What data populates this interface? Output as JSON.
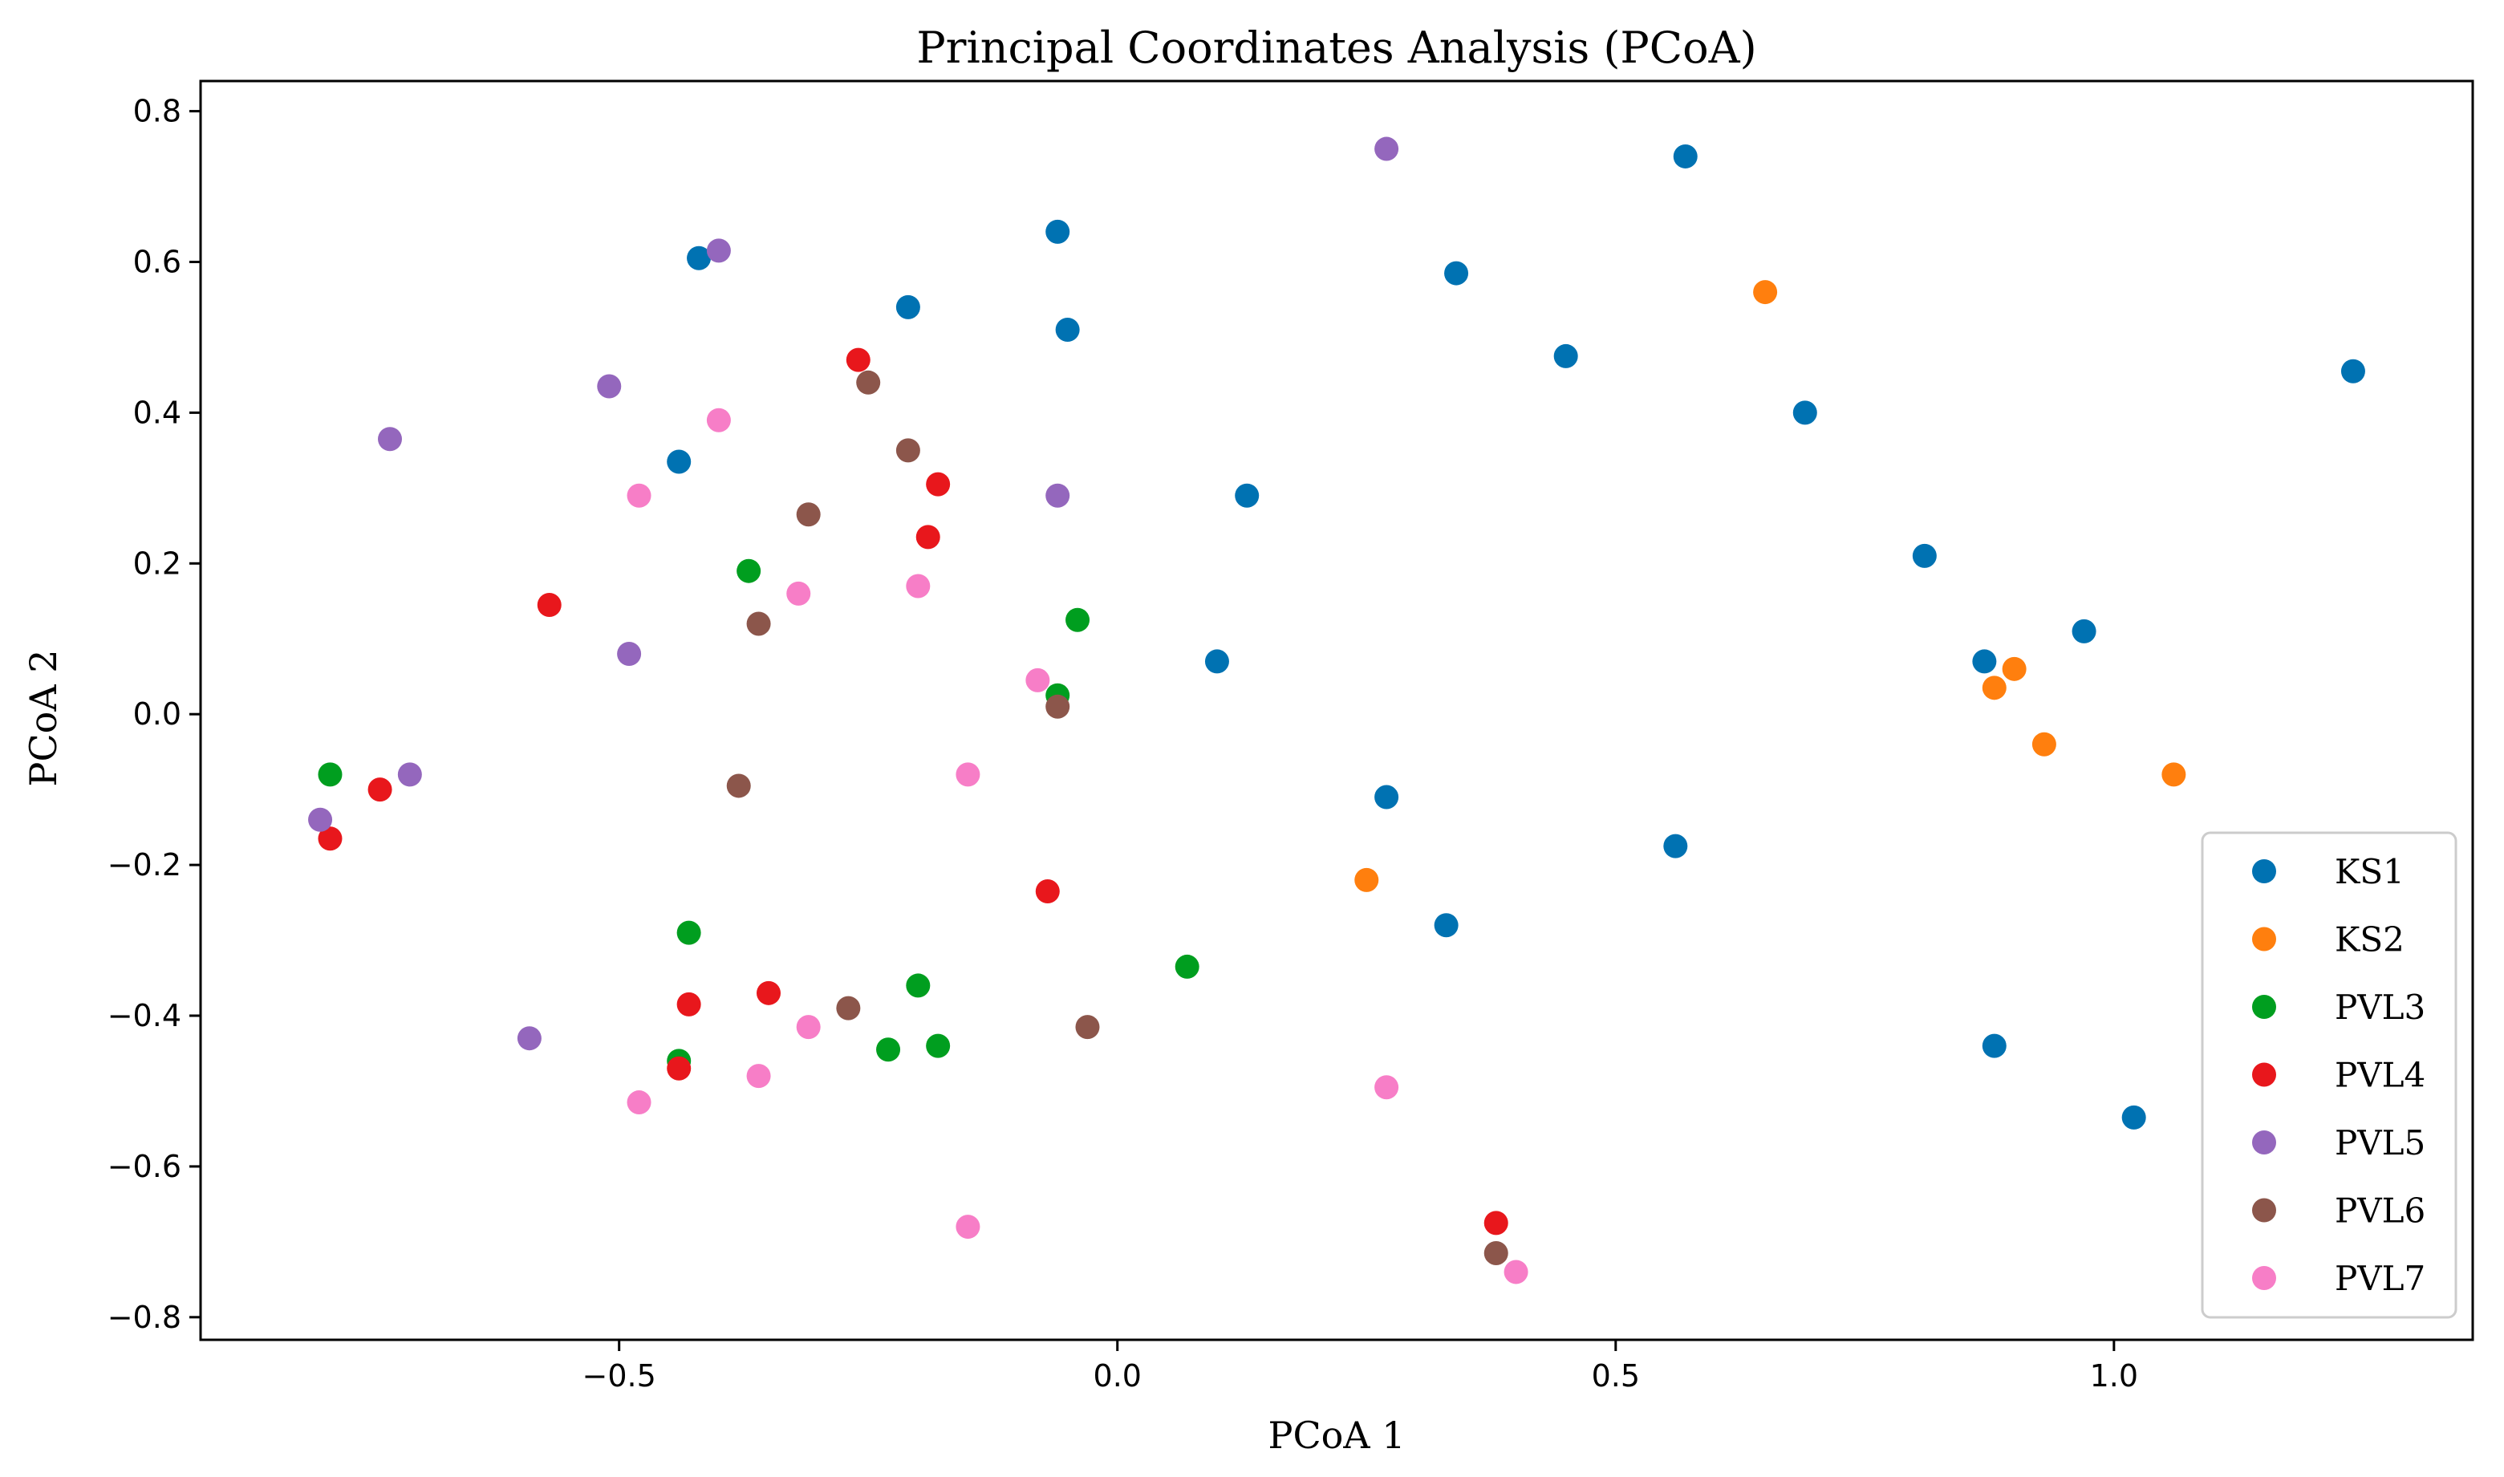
{
  "chart_data": {
    "type": "scatter",
    "title": "Principal Coordinates Analysis (PCoA)",
    "xlabel": "PCoA 1",
    "ylabel": "PCoA 2",
    "xlim": [
      -0.92,
      1.36
    ],
    "ylim": [
      -0.83,
      0.84
    ],
    "xticks": [
      -0.5,
      0.0,
      0.5,
      1.0
    ],
    "xtick_labels": [
      "−0.5",
      "0.0",
      "0.5",
      "1.0"
    ],
    "yticks": [
      -0.8,
      -0.6,
      -0.4,
      -0.2,
      0.0,
      0.2,
      0.4,
      0.6,
      0.8
    ],
    "ytick_labels": [
      "−0.8",
      "−0.6",
      "−0.4",
      "−0.2",
      "0.0",
      "0.2",
      "0.4",
      "0.6",
      "0.8"
    ],
    "grid": false,
    "legend_position": "bottom-right",
    "series": [
      {
        "name": "KS1",
        "color": "#0072b2",
        "points": [
          [
            0.57,
            0.74
          ],
          [
            0.34,
            0.585
          ],
          [
            -0.06,
            0.64
          ],
          [
            -0.21,
            0.54
          ],
          [
            -0.42,
            0.605
          ],
          [
            -0.05,
            0.51
          ],
          [
            0.45,
            0.475
          ],
          [
            0.69,
            0.4
          ],
          [
            1.24,
            0.455
          ],
          [
            -0.44,
            0.335
          ],
          [
            0.13,
            0.29
          ],
          [
            0.81,
            0.21
          ],
          [
            0.97,
            0.11
          ],
          [
            0.87,
            0.07
          ],
          [
            0.1,
            0.07
          ],
          [
            0.27,
            -0.11
          ],
          [
            0.56,
            -0.175
          ],
          [
            0.33,
            -0.28
          ],
          [
            0.88,
            -0.44
          ],
          [
            1.02,
            -0.535
          ]
        ]
      },
      {
        "name": "KS2",
        "color": "#ff7f0e",
        "points": [
          [
            0.65,
            0.56
          ],
          [
            0.9,
            0.06
          ],
          [
            0.88,
            0.035
          ],
          [
            0.93,
            -0.04
          ],
          [
            1.06,
            -0.08
          ],
          [
            0.25,
            -0.22
          ]
        ]
      },
      {
        "name": "PVL3",
        "color": "#009e1f",
        "points": [
          [
            -0.37,
            0.19
          ],
          [
            -0.04,
            0.125
          ],
          [
            -0.06,
            0.025
          ],
          [
            -0.79,
            -0.08
          ],
          [
            -0.43,
            -0.29
          ],
          [
            -0.2,
            -0.36
          ],
          [
            0.07,
            -0.335
          ],
          [
            -0.23,
            -0.445
          ],
          [
            -0.18,
            -0.44
          ],
          [
            -0.44,
            -0.46
          ]
        ]
      },
      {
        "name": "PVL4",
        "color": "#e8171c",
        "points": [
          [
            -0.26,
            0.47
          ],
          [
            -0.18,
            0.305
          ],
          [
            -0.19,
            0.235
          ],
          [
            -0.57,
            0.145
          ],
          [
            -0.74,
            -0.1
          ],
          [
            -0.79,
            -0.165
          ],
          [
            -0.07,
            -0.235
          ],
          [
            -0.43,
            -0.385
          ],
          [
            -0.35,
            -0.37
          ],
          [
            -0.44,
            -0.47
          ],
          [
            0.38,
            -0.675
          ]
        ]
      },
      {
        "name": "PVL5",
        "color": "#9467bd",
        "points": [
          [
            0.27,
            0.75
          ],
          [
            -0.4,
            0.615
          ],
          [
            -0.51,
            0.435
          ],
          [
            -0.73,
            0.365
          ],
          [
            -0.06,
            0.29
          ],
          [
            -0.49,
            0.08
          ],
          [
            -0.71,
            -0.08
          ],
          [
            -0.8,
            -0.14
          ],
          [
            -0.59,
            -0.43
          ]
        ]
      },
      {
        "name": "PVL6",
        "color": "#8c564b",
        "points": [
          [
            -0.25,
            0.44
          ],
          [
            -0.21,
            0.35
          ],
          [
            -0.31,
            0.265
          ],
          [
            -0.36,
            0.12
          ],
          [
            -0.06,
            0.01
          ],
          [
            -0.38,
            -0.095
          ],
          [
            -0.27,
            -0.39
          ],
          [
            -0.03,
            -0.415
          ],
          [
            0.38,
            -0.715
          ]
        ]
      },
      {
        "name": "PVL7",
        "color": "#f77ec7",
        "points": [
          [
            -0.4,
            0.39
          ],
          [
            -0.48,
            0.29
          ],
          [
            -0.32,
            0.16
          ],
          [
            -0.2,
            0.17
          ],
          [
            -0.08,
            0.045
          ],
          [
            -0.15,
            -0.08
          ],
          [
            -0.31,
            -0.415
          ],
          [
            -0.36,
            -0.48
          ],
          [
            -0.48,
            -0.515
          ],
          [
            0.27,
            -0.495
          ],
          [
            -0.15,
            -0.68
          ],
          [
            0.4,
            -0.74
          ]
        ]
      }
    ]
  }
}
